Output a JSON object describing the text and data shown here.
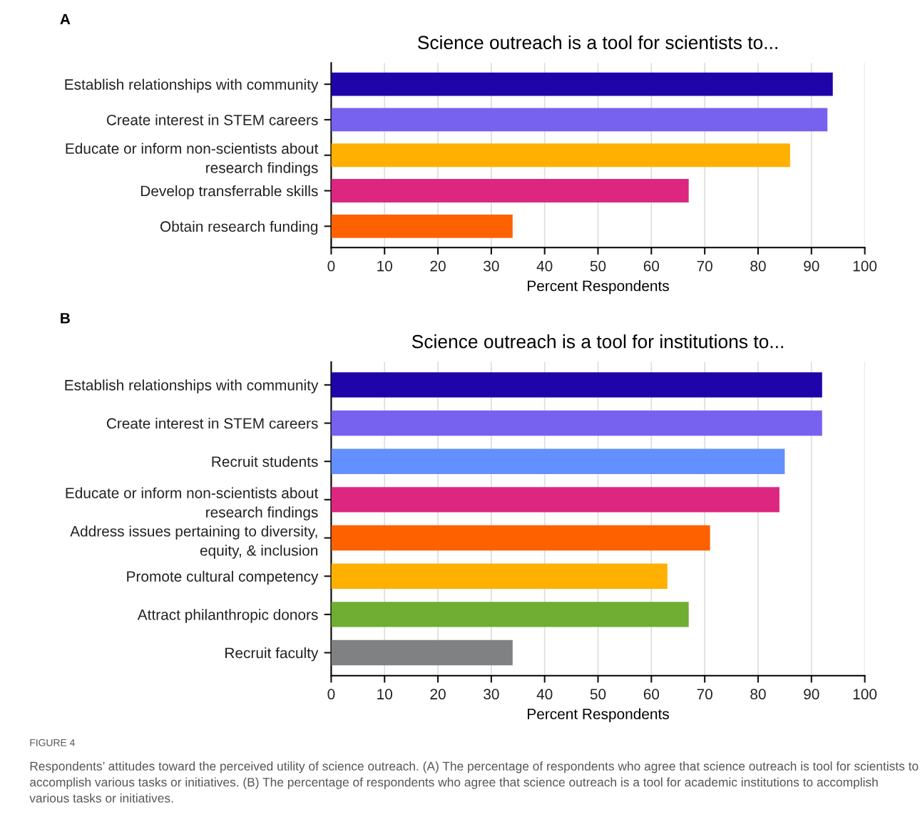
{
  "chart_data": [
    {
      "type": "bar",
      "orientation": "horizontal",
      "title": "Science outreach is a tool for scientists to...",
      "xlabel": "Percent Respondents",
      "categories": [
        "Establish relationships with community",
        "Create interest in STEM careers",
        "Educate or inform non-scientists about\nresearch findings",
        "Develop transferrable skills",
        "Obtain research funding"
      ],
      "values": [
        94,
        93,
        86,
        67,
        34
      ],
      "colors": [
        "#1f04aa",
        "#7762ef",
        "#ffb000",
        "#dc267f",
        "#fe6100"
      ],
      "xlim": [
        0,
        100
      ],
      "xticks": [
        0,
        10,
        20,
        30,
        40,
        50,
        60,
        70,
        80,
        90,
        100
      ],
      "grid": "x",
      "legend": false,
      "annotations": [
        "A"
      ]
    },
    {
      "type": "bar",
      "orientation": "horizontal",
      "title": "Science outreach is a tool for institutions to...",
      "xlabel": "Percent Respondents",
      "categories": [
        "Establish relationships with community",
        "Create interest in STEM careers",
        "Recruit students",
        "Educate or inform non-scientists about\nresearch findings",
        "Address issues pertaining to diversity,\nequity, & inclusion",
        "Promote cultural competency",
        "Attract philanthropic donors",
        "Recruit faculty"
      ],
      "values": [
        92,
        92,
        85,
        84,
        71,
        63,
        67,
        34
      ],
      "colors": [
        "#1f04aa",
        "#7762ef",
        "#648fff",
        "#dc267f",
        "#fe6100",
        "#ffb000",
        "#6fae32",
        "#7f8182"
      ],
      "xlim": [
        0,
        100
      ],
      "xticks": [
        0,
        10,
        20,
        30,
        40,
        50,
        60,
        70,
        80,
        90,
        100
      ],
      "grid": "x",
      "legend": false,
      "annotations": [
        "B",
        "FIGURE 4",
        "Respondents’ attitudes toward the perceived utility of science outreach. (A) The percentage of respondents who agree that science outreach is tool for scientists to accomplish various tasks or initiatives. (B) The percentage of respondents who agree that science outreach is a tool for academic institutions to accomplish various tasks or initiatives."
      ]
    }
  ]
}
